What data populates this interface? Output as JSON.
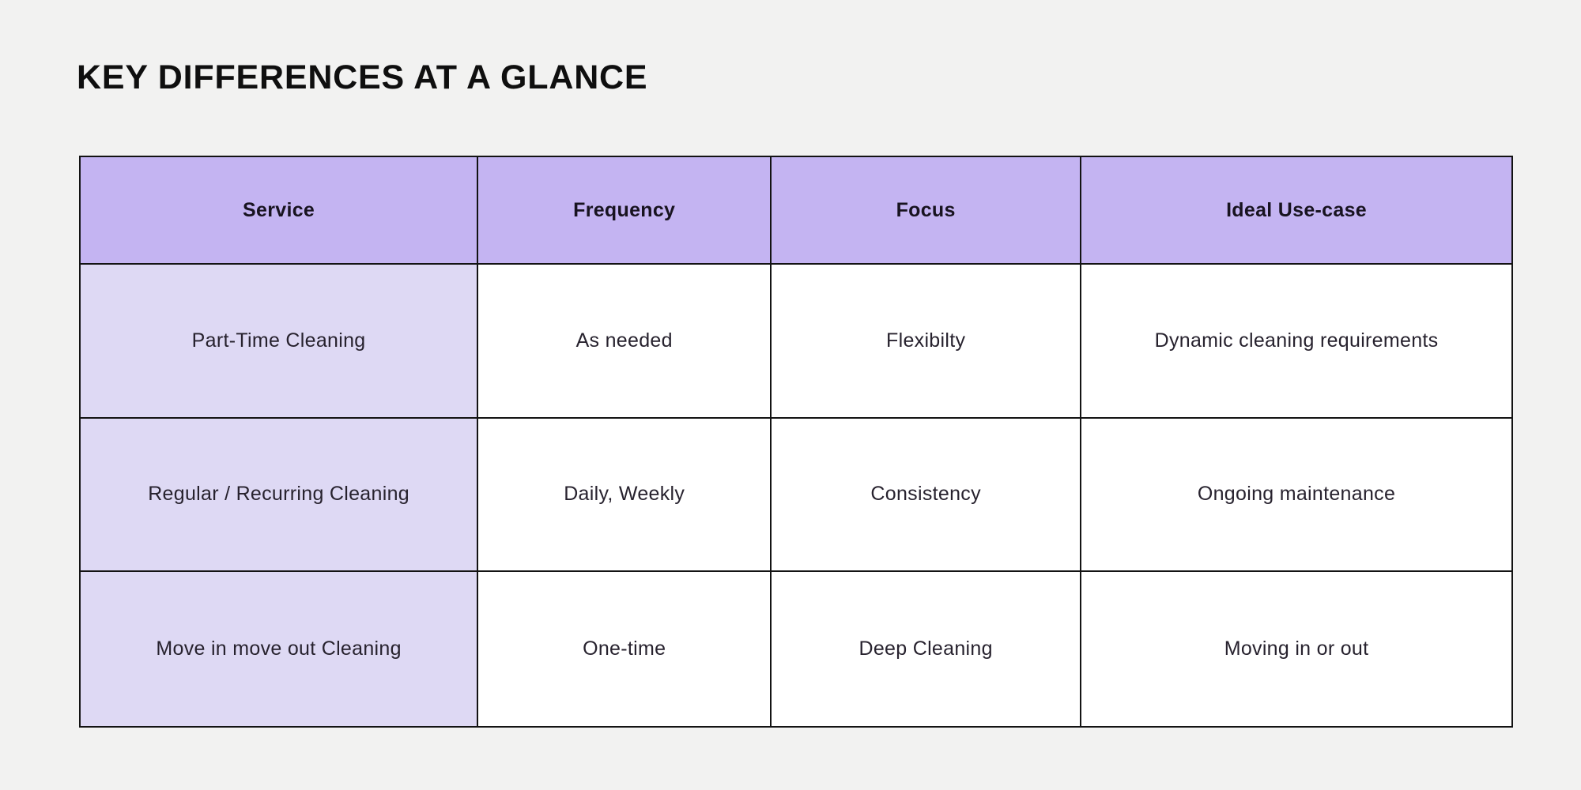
{
  "title": "KEY DIFFERENCES AT A GLANCE",
  "colors": {
    "page_bg": "#f2f2f1",
    "header_bg": "#c4b4f2",
    "service_col_bg": "#ded9f4",
    "cell_bg": "#ffffff",
    "border": "#131313",
    "header_text": "#181320",
    "body_text": "#27222e",
    "title_text": "#0f0f0f"
  },
  "table": {
    "headers": [
      "Service",
      "Frequency",
      "Focus",
      "Ideal Use-case"
    ],
    "rows": [
      [
        "Part-Time Cleaning",
        "As needed",
        "Flexibilty",
        "Dynamic cleaning requirements"
      ],
      [
        "Regular / Recurring Cleaning",
        "Daily, Weekly",
        "Consistency",
        "Ongoing maintenance"
      ],
      [
        "Move in move out Cleaning",
        "One-time",
        "Deep Cleaning",
        "Moving in or out"
      ]
    ]
  }
}
